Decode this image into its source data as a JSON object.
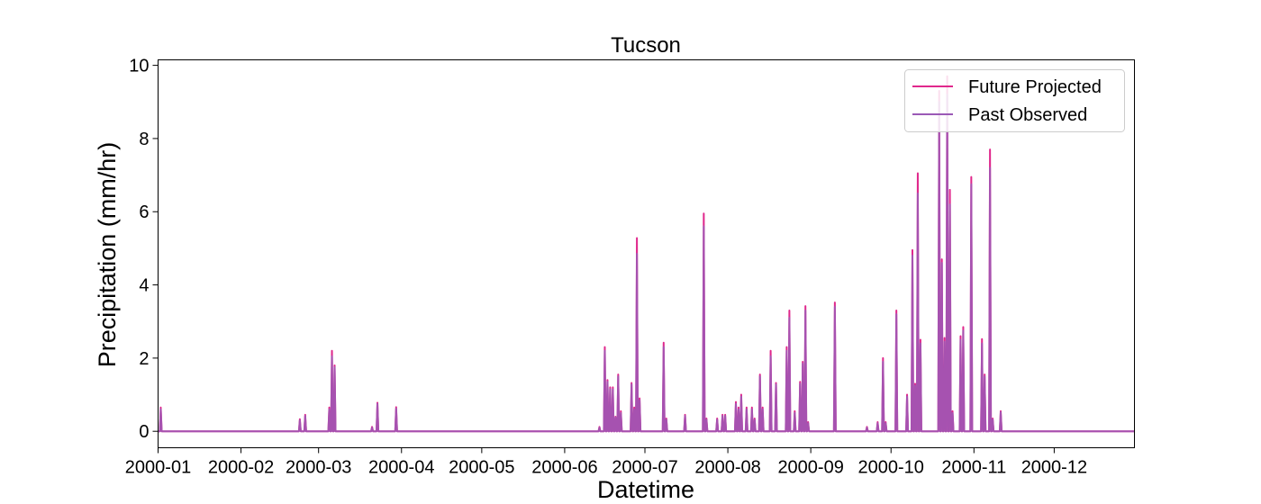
{
  "chart_data": {
    "type": "line",
    "title": "Tucson",
    "xlabel": "Datetime",
    "ylabel": "Precipitation (mm/hr)",
    "xlim": [
      "2000-01-01",
      "2000-12-31"
    ],
    "ylim": [
      -0.45,
      10.15
    ],
    "x_ticks": [
      "2000-01",
      "2000-02",
      "2000-03",
      "2000-04",
      "2000-05",
      "2000-06",
      "2000-07",
      "2000-08",
      "2000-09",
      "2000-10",
      "2000-11",
      "2000-12"
    ],
    "y_ticks": [
      0,
      2,
      4,
      6,
      8,
      10
    ],
    "grid": false,
    "legend": "top-right",
    "series": [
      {
        "name": "Future Projected",
        "color": "#e0288c",
        "points": [
          [
            "2000-01-02",
            0.65
          ],
          [
            "2000-02-23",
            0.33
          ],
          [
            "2000-02-25",
            0.45
          ],
          [
            "2000-03-05",
            0.65
          ],
          [
            "2000-03-06",
            2.2
          ],
          [
            "2000-03-07",
            1.8
          ],
          [
            "2000-03-21",
            0.12
          ],
          [
            "2000-03-23",
            0.78
          ],
          [
            "2000-03-30",
            0.66
          ],
          [
            "2000-06-14",
            0.12
          ],
          [
            "2000-06-16",
            2.3
          ],
          [
            "2000-06-17",
            1.4
          ],
          [
            "2000-06-18",
            1.2
          ],
          [
            "2000-06-19",
            1.2
          ],
          [
            "2000-06-20",
            0.4
          ],
          [
            "2000-06-21",
            1.55
          ],
          [
            "2000-06-22",
            0.55
          ],
          [
            "2000-06-26",
            1.32
          ],
          [
            "2000-06-27",
            0.65
          ],
          [
            "2000-06-28",
            5.28
          ],
          [
            "2000-06-29",
            0.9
          ],
          [
            "2000-07-08",
            2.42
          ],
          [
            "2000-07-09",
            0.35
          ],
          [
            "2000-07-16",
            0.45
          ],
          [
            "2000-07-23",
            5.95
          ],
          [
            "2000-07-24",
            0.35
          ],
          [
            "2000-07-28",
            0.35
          ],
          [
            "2000-07-30",
            0.45
          ],
          [
            "2000-07-31",
            0.45
          ],
          [
            "2000-08-04",
            0.8
          ],
          [
            "2000-08-05",
            0.65
          ],
          [
            "2000-08-06",
            1.0
          ],
          [
            "2000-08-08",
            0.65
          ],
          [
            "2000-08-10",
            0.65
          ],
          [
            "2000-08-11",
            0.35
          ],
          [
            "2000-08-13",
            1.55
          ],
          [
            "2000-08-14",
            0.65
          ],
          [
            "2000-08-17",
            2.2
          ],
          [
            "2000-08-19",
            1.32
          ],
          [
            "2000-08-23",
            2.3
          ],
          [
            "2000-08-24",
            3.3
          ],
          [
            "2000-08-26",
            0.55
          ],
          [
            "2000-08-28",
            1.35
          ],
          [
            "2000-08-29",
            1.9
          ],
          [
            "2000-08-30",
            3.42
          ],
          [
            "2000-08-31",
            0.25
          ],
          [
            "2000-09-10",
            3.52
          ],
          [
            "2000-09-22",
            0.12
          ],
          [
            "2000-09-26",
            0.25
          ],
          [
            "2000-09-28",
            2.0
          ],
          [
            "2000-09-29",
            0.25
          ],
          [
            "2000-10-03",
            3.3
          ],
          [
            "2000-10-07",
            1.0
          ],
          [
            "2000-10-09",
            4.95
          ],
          [
            "2000-10-10",
            1.3
          ],
          [
            "2000-10-11",
            7.05
          ],
          [
            "2000-10-12",
            2.5
          ],
          [
            "2000-10-19",
            9.3
          ],
          [
            "2000-10-20",
            4.7
          ],
          [
            "2000-10-21",
            2.55
          ],
          [
            "2000-10-22",
            9.7
          ],
          [
            "2000-10-23",
            6.6
          ],
          [
            "2000-10-24",
            0.55
          ],
          [
            "2000-10-27",
            2.6
          ],
          [
            "2000-10-28",
            2.85
          ],
          [
            "2000-10-31",
            6.95
          ],
          [
            "2000-11-04",
            2.52
          ],
          [
            "2000-11-05",
            1.55
          ],
          [
            "2000-11-07",
            7.7
          ],
          [
            "2000-11-08",
            0.35
          ],
          [
            "2000-11-11",
            0.55
          ]
        ]
      },
      {
        "name": "Past Observed",
        "color": "#9b59b6",
        "points": [
          [
            "2000-01-02",
            0.6
          ],
          [
            "2000-02-23",
            0.3
          ],
          [
            "2000-02-25",
            0.42
          ],
          [
            "2000-03-05",
            0.6
          ],
          [
            "2000-03-06",
            2.05
          ],
          [
            "2000-03-07",
            1.75
          ],
          [
            "2000-03-21",
            0.1
          ],
          [
            "2000-03-23",
            0.75
          ],
          [
            "2000-03-30",
            0.62
          ],
          [
            "2000-06-14",
            0.1
          ],
          [
            "2000-06-16",
            2.2
          ],
          [
            "2000-06-17",
            1.35
          ],
          [
            "2000-06-18",
            1.15
          ],
          [
            "2000-06-19",
            1.15
          ],
          [
            "2000-06-20",
            0.38
          ],
          [
            "2000-06-21",
            1.5
          ],
          [
            "2000-06-22",
            0.5
          ],
          [
            "2000-06-26",
            1.28
          ],
          [
            "2000-06-27",
            0.6
          ],
          [
            "2000-06-28",
            4.85
          ],
          [
            "2000-06-29",
            0.85
          ],
          [
            "2000-07-08",
            2.3
          ],
          [
            "2000-07-09",
            0.32
          ],
          [
            "2000-07-16",
            0.42
          ],
          [
            "2000-07-23",
            5.6
          ],
          [
            "2000-07-24",
            0.32
          ],
          [
            "2000-07-28",
            0.32
          ],
          [
            "2000-07-30",
            0.42
          ],
          [
            "2000-07-31",
            0.42
          ],
          [
            "2000-08-04",
            0.75
          ],
          [
            "2000-08-05",
            0.6
          ],
          [
            "2000-08-06",
            0.95
          ],
          [
            "2000-08-08",
            0.6
          ],
          [
            "2000-08-10",
            0.6
          ],
          [
            "2000-08-11",
            0.32
          ],
          [
            "2000-08-13",
            1.5
          ],
          [
            "2000-08-14",
            0.6
          ],
          [
            "2000-08-17",
            2.05
          ],
          [
            "2000-08-19",
            1.28
          ],
          [
            "2000-08-23",
            2.2
          ],
          [
            "2000-08-24",
            3.1
          ],
          [
            "2000-08-26",
            0.5
          ],
          [
            "2000-08-28",
            1.3
          ],
          [
            "2000-08-29",
            1.85
          ],
          [
            "2000-08-30",
            3.3
          ],
          [
            "2000-08-31",
            0.22
          ],
          [
            "2000-09-10",
            3.4
          ],
          [
            "2000-09-22",
            0.1
          ],
          [
            "2000-09-26",
            0.22
          ],
          [
            "2000-09-28",
            1.9
          ],
          [
            "2000-09-29",
            0.22
          ],
          [
            "2000-10-03",
            3.2
          ],
          [
            "2000-10-07",
            0.95
          ],
          [
            "2000-10-09",
            4.8
          ],
          [
            "2000-10-10",
            1.25
          ],
          [
            "2000-10-11",
            6.5
          ],
          [
            "2000-10-12",
            2.4
          ],
          [
            "2000-10-19",
            9.0
          ],
          [
            "2000-10-20",
            4.6
          ],
          [
            "2000-10-21",
            2.45
          ],
          [
            "2000-10-22",
            9.2
          ],
          [
            "2000-10-23",
            6.2
          ],
          [
            "2000-10-24",
            0.5
          ],
          [
            "2000-10-27",
            2.5
          ],
          [
            "2000-10-28",
            2.75
          ],
          [
            "2000-10-31",
            6.75
          ],
          [
            "2000-11-04",
            2.4
          ],
          [
            "2000-11-05",
            1.5
          ],
          [
            "2000-11-07",
            7.2
          ],
          [
            "2000-11-08",
            0.32
          ],
          [
            "2000-11-11",
            0.52
          ]
        ]
      }
    ]
  }
}
